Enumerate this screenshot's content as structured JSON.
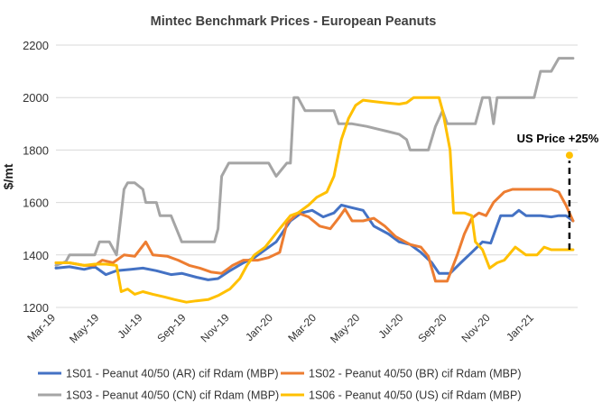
{
  "chart_data": {
    "type": "line",
    "title": "Mintec Benchmark Prices - European Peanuts",
    "ylabel": "$/mt",
    "xlabel": "",
    "ylim": [
      1200,
      2200
    ],
    "yticks": [
      "1200",
      "1400",
      "1600",
      "1800",
      "2000",
      "2200"
    ],
    "xticks": [
      "Mar-19",
      "May-19",
      "Jul-19",
      "Sep-19",
      "Nov-19",
      "Jan-20",
      "Mar-20",
      "May-20",
      "Jul-20",
      "Sep-20",
      "Nov-20",
      "Jan-21"
    ],
    "grid": "horizontal",
    "legend_position": "bottom",
    "annotation": {
      "text": "US Price +25%",
      "x": "Feb-21",
      "from": 1420,
      "to": 1780,
      "color": "#FFC000"
    },
    "series": [
      {
        "name": "1S01 - Peanut 40/50 (AR) cif Rdam (MBP)",
        "color": "#4472C4",
        "points": [
          [
            "2019-03-01",
            1350
          ],
          [
            "2019-03-20",
            1355
          ],
          [
            "2019-04-10",
            1345
          ],
          [
            "2019-04-25",
            1355
          ],
          [
            "2019-05-10",
            1325
          ],
          [
            "2019-05-25",
            1340
          ],
          [
            "2019-06-15",
            1345
          ],
          [
            "2019-07-01",
            1350
          ],
          [
            "2019-07-20",
            1340
          ],
          [
            "2019-08-10",
            1325
          ],
          [
            "2019-08-25",
            1330
          ],
          [
            "2019-09-15",
            1315
          ],
          [
            "2019-10-01",
            1305
          ],
          [
            "2019-10-15",
            1310
          ],
          [
            "2019-11-01",
            1340
          ],
          [
            "2019-11-20",
            1370
          ],
          [
            "2019-12-05",
            1390
          ],
          [
            "2019-12-20",
            1420
          ],
          [
            "2020-01-05",
            1450
          ],
          [
            "2020-01-25",
            1530
          ],
          [
            "2020-02-10",
            1560
          ],
          [
            "2020-02-25",
            1570
          ],
          [
            "2020-03-10",
            1545
          ],
          [
            "2020-03-25",
            1560
          ],
          [
            "2020-04-05",
            1590
          ],
          [
            "2020-04-20",
            1580
          ],
          [
            "2020-05-05",
            1570
          ],
          [
            "2020-05-20",
            1510
          ],
          [
            "2020-06-10",
            1480
          ],
          [
            "2020-06-25",
            1450
          ],
          [
            "2020-07-10",
            1440
          ],
          [
            "2020-07-25",
            1410
          ],
          [
            "2020-08-10",
            1370
          ],
          [
            "2020-08-20",
            1330
          ],
          [
            "2020-09-05",
            1330
          ],
          [
            "2020-09-20",
            1370
          ],
          [
            "2020-10-05",
            1410
          ],
          [
            "2020-10-20",
            1450
          ],
          [
            "2020-11-01",
            1445
          ],
          [
            "2020-11-15",
            1550
          ],
          [
            "2020-12-01",
            1550
          ],
          [
            "2020-12-10",
            1570
          ],
          [
            "2020-12-20",
            1550
          ],
          [
            "2021-01-10",
            1550
          ],
          [
            "2021-01-25",
            1545
          ],
          [
            "2021-02-05",
            1550
          ],
          [
            "2021-02-15",
            1550
          ],
          [
            "2021-02-25",
            1530
          ]
        ]
      },
      {
        "name": "1S02 - Peanut 40/50 (BR) cif Rdam (MBP)",
        "color": "#ED7D31",
        "points": [
          [
            "2019-03-01",
            1370
          ],
          [
            "2019-03-20",
            1370
          ],
          [
            "2019-04-10",
            1360
          ],
          [
            "2019-04-25",
            1360
          ],
          [
            "2019-05-05",
            1380
          ],
          [
            "2019-05-20",
            1370
          ],
          [
            "2019-06-05",
            1400
          ],
          [
            "2019-06-20",
            1395
          ],
          [
            "2019-07-05",
            1450
          ],
          [
            "2019-07-15",
            1400
          ],
          [
            "2019-08-05",
            1395
          ],
          [
            "2019-08-20",
            1380
          ],
          [
            "2019-09-05",
            1360
          ],
          [
            "2019-09-20",
            1350
          ],
          [
            "2019-10-05",
            1335
          ],
          [
            "2019-10-20",
            1330
          ],
          [
            "2019-11-05",
            1360
          ],
          [
            "2019-11-20",
            1380
          ],
          [
            "2019-12-10",
            1380
          ],
          [
            "2019-12-25",
            1390
          ],
          [
            "2020-01-10",
            1410
          ],
          [
            "2020-01-20",
            1520
          ],
          [
            "2020-02-05",
            1560
          ],
          [
            "2020-02-20",
            1545
          ],
          [
            "2020-03-05",
            1510
          ],
          [
            "2020-03-20",
            1500
          ],
          [
            "2020-04-01",
            1540
          ],
          [
            "2020-04-10",
            1575
          ],
          [
            "2020-04-20",
            1530
          ],
          [
            "2020-05-05",
            1530
          ],
          [
            "2020-05-20",
            1540
          ],
          [
            "2020-06-05",
            1510
          ],
          [
            "2020-06-20",
            1470
          ],
          [
            "2020-07-10",
            1440
          ],
          [
            "2020-07-25",
            1430
          ],
          [
            "2020-08-05",
            1395
          ],
          [
            "2020-08-15",
            1300
          ],
          [
            "2020-09-01",
            1300
          ],
          [
            "2020-09-15",
            1400
          ],
          [
            "2020-09-25",
            1480
          ],
          [
            "2020-10-05",
            1540
          ],
          [
            "2020-10-15",
            1560
          ],
          [
            "2020-10-25",
            1550
          ],
          [
            "2020-11-05",
            1600
          ],
          [
            "2020-11-20",
            1640
          ],
          [
            "2020-12-01",
            1650
          ],
          [
            "2020-12-15",
            1650
          ],
          [
            "2021-01-05",
            1650
          ],
          [
            "2021-01-25",
            1650
          ],
          [
            "2021-02-05",
            1640
          ],
          [
            "2021-02-15",
            1590
          ],
          [
            "2021-02-25",
            1530
          ]
        ]
      },
      {
        "name": "1S03 - Peanut 40/50 (CN) cif Rdam (MBP)",
        "color": "#A5A5A5",
        "points": [
          [
            "2019-03-01",
            1360
          ],
          [
            "2019-03-15",
            1375
          ],
          [
            "2019-03-20",
            1400
          ],
          [
            "2019-04-10",
            1400
          ],
          [
            "2019-04-25",
            1400
          ],
          [
            "2019-05-01",
            1450
          ],
          [
            "2019-05-15",
            1450
          ],
          [
            "2019-05-25",
            1400
          ],
          [
            "2019-06-05",
            1650
          ],
          [
            "2019-06-10",
            1675
          ],
          [
            "2019-06-20",
            1675
          ],
          [
            "2019-07-01",
            1650
          ],
          [
            "2019-07-05",
            1600
          ],
          [
            "2019-07-20",
            1600
          ],
          [
            "2019-07-25",
            1550
          ],
          [
            "2019-08-10",
            1550
          ],
          [
            "2019-08-25",
            1450
          ],
          [
            "2019-09-15",
            1450
          ],
          [
            "2019-10-05",
            1450
          ],
          [
            "2019-10-10",
            1450
          ],
          [
            "2019-10-15",
            1500
          ],
          [
            "2019-10-20",
            1700
          ],
          [
            "2019-10-30",
            1750
          ],
          [
            "2019-11-20",
            1750
          ],
          [
            "2019-12-10",
            1750
          ],
          [
            "2019-12-25",
            1750
          ],
          [
            "2020-01-05",
            1700
          ],
          [
            "2020-01-20",
            1750
          ],
          [
            "2020-01-25",
            1750
          ],
          [
            "2020-01-30",
            2000
          ],
          [
            "2020-02-05",
            2000
          ],
          [
            "2020-02-15",
            1950
          ],
          [
            "2020-03-10",
            1950
          ],
          [
            "2020-03-25",
            1950
          ],
          [
            "2020-04-01",
            1900
          ],
          [
            "2020-04-20",
            1900
          ],
          [
            "2020-05-10",
            1890
          ],
          [
            "2020-05-25",
            1880
          ],
          [
            "2020-06-10",
            1870
          ],
          [
            "2020-06-25",
            1860
          ],
          [
            "2020-07-05",
            1840
          ],
          [
            "2020-07-10",
            1800
          ],
          [
            "2020-07-20",
            1800
          ],
          [
            "2020-08-05",
            1800
          ],
          [
            "2020-08-15",
            1890
          ],
          [
            "2020-08-25",
            1950
          ],
          [
            "2020-09-01",
            1900
          ],
          [
            "2020-09-20",
            1900
          ],
          [
            "2020-10-10",
            1900
          ],
          [
            "2020-10-20",
            2000
          ],
          [
            "2020-10-30",
            2000
          ],
          [
            "2020-11-05",
            1900
          ],
          [
            "2020-11-10",
            2000
          ],
          [
            "2020-12-01",
            2000
          ],
          [
            "2020-12-20",
            2000
          ],
          [
            "2021-01-01",
            2000
          ],
          [
            "2021-01-10",
            2100
          ],
          [
            "2021-01-25",
            2100
          ],
          [
            "2021-02-05",
            2150
          ],
          [
            "2021-02-25",
            2150
          ]
        ]
      },
      {
        "name": "1S06 - Peanut 40/50 (US) cif Rdam (MBP)",
        "color": "#FFC000",
        "points": [
          [
            "2019-03-01",
            1370
          ],
          [
            "2019-03-20",
            1370
          ],
          [
            "2019-04-10",
            1360
          ],
          [
            "2019-04-25",
            1365
          ],
          [
            "2019-05-10",
            1365
          ],
          [
            "2019-05-25",
            1360
          ],
          [
            "2019-06-01",
            1260
          ],
          [
            "2019-06-10",
            1270
          ],
          [
            "2019-06-20",
            1250
          ],
          [
            "2019-07-01",
            1260
          ],
          [
            "2019-07-15",
            1250
          ],
          [
            "2019-08-01",
            1240
          ],
          [
            "2019-08-15",
            1230
          ],
          [
            "2019-09-01",
            1220
          ],
          [
            "2019-09-15",
            1225
          ],
          [
            "2019-10-01",
            1230
          ],
          [
            "2019-10-15",
            1245
          ],
          [
            "2019-11-01",
            1270
          ],
          [
            "2019-11-15",
            1310
          ],
          [
            "2019-11-25",
            1360
          ],
          [
            "2019-12-05",
            1400
          ],
          [
            "2019-12-20",
            1430
          ],
          [
            "2020-01-10",
            1500
          ],
          [
            "2020-01-25",
            1550
          ],
          [
            "2020-02-05",
            1560
          ],
          [
            "2020-02-20",
            1590
          ],
          [
            "2020-03-01",
            1620
          ],
          [
            "2020-03-15",
            1640
          ],
          [
            "2020-03-25",
            1700
          ],
          [
            "2020-04-05",
            1840
          ],
          [
            "2020-04-15",
            1920
          ],
          [
            "2020-04-25",
            1970
          ],
          [
            "2020-05-05",
            1990
          ],
          [
            "2020-05-20",
            1985
          ],
          [
            "2020-06-05",
            1980
          ],
          [
            "2020-06-25",
            1975
          ],
          [
            "2020-07-05",
            1980
          ],
          [
            "2020-07-15",
            2000
          ],
          [
            "2020-08-05",
            2000
          ],
          [
            "2020-08-20",
            2000
          ],
          [
            "2020-08-25",
            1950
          ],
          [
            "2020-09-05",
            1800
          ],
          [
            "2020-09-10",
            1560
          ],
          [
            "2020-09-25",
            1560
          ],
          [
            "2020-10-05",
            1550
          ],
          [
            "2020-10-10",
            1450
          ],
          [
            "2020-10-20",
            1420
          ],
          [
            "2020-10-30",
            1350
          ],
          [
            "2020-11-10",
            1370
          ],
          [
            "2020-11-20",
            1380
          ],
          [
            "2020-12-05",
            1430
          ],
          [
            "2020-12-20",
            1400
          ],
          [
            "2021-01-05",
            1400
          ],
          [
            "2021-01-15",
            1430
          ],
          [
            "2021-01-25",
            1420
          ],
          [
            "2021-02-10",
            1420
          ],
          [
            "2021-02-25",
            1420
          ]
        ]
      }
    ]
  }
}
